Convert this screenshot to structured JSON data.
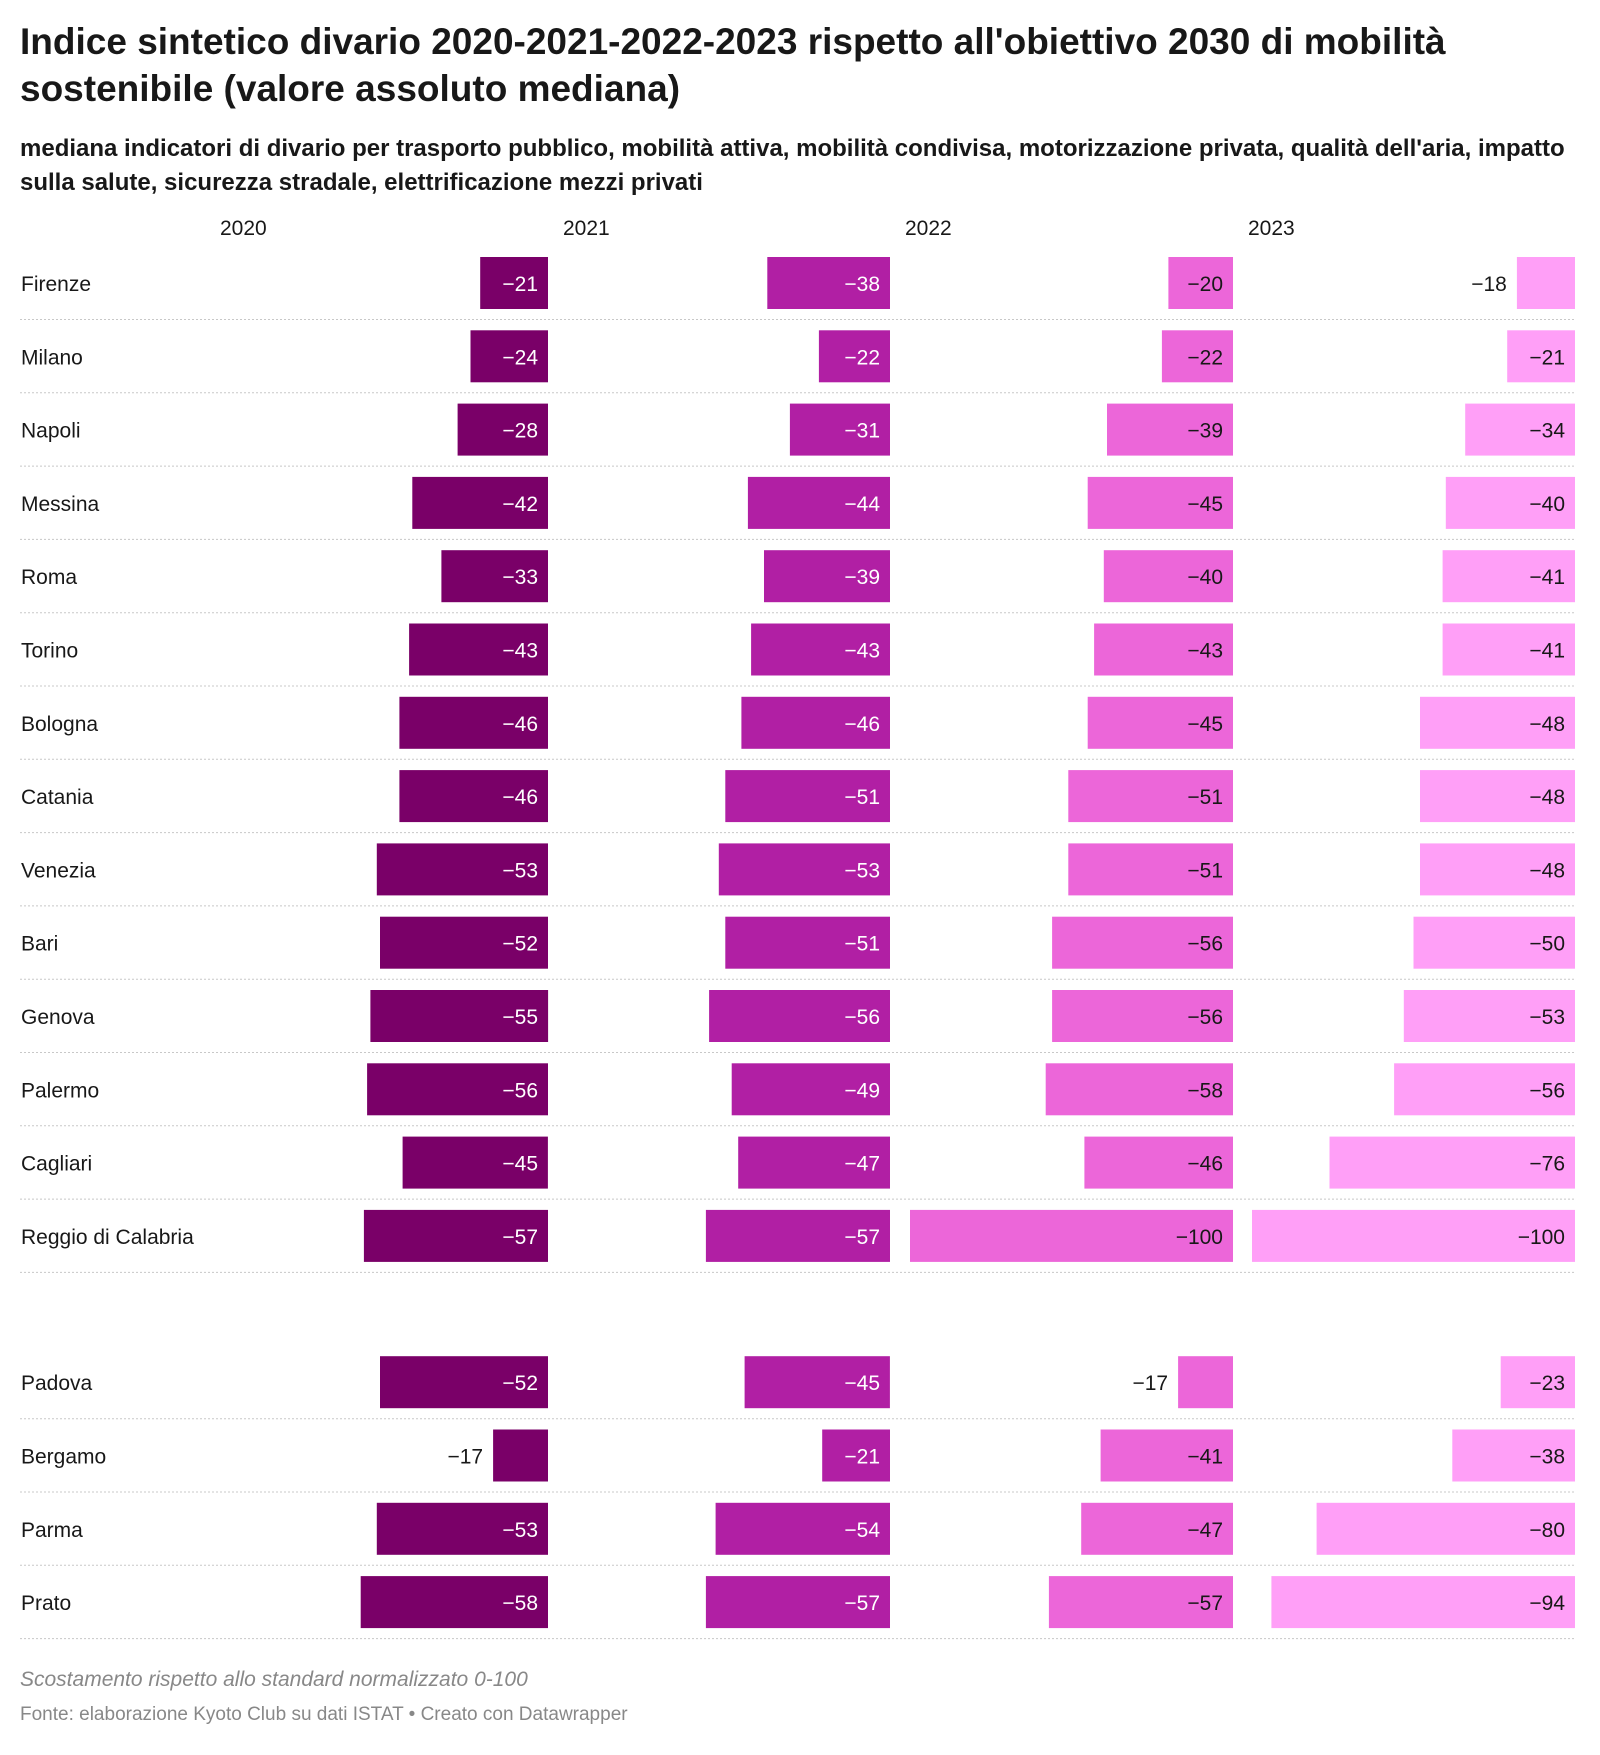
{
  "title": "Indice sintetico divario 2020-2021-2022-2023 rispetto all'obiettivo 2030 di mobilità sostenibile (valore assoluto mediana)",
  "subtitle": "mediana indicatori di divario per trasporto pubblico, mobilità attiva, mobilità condivisa, motorizzazione privata, qualità dell'aria, impatto sulla salute, sicurezza stradale, elettrificazione mezzi privati",
  "footer": {
    "note": "Scostamento rispetto allo standard normalizzato 0-100",
    "source": "Fonte: elaborazione Kyoto Club su dati ISTAT • Creato con Datawrapper"
  },
  "chart_data": {
    "type": "bar",
    "orientation": "horizontal",
    "value_range": [
      -100,
      0
    ],
    "number_format": "minus sign −",
    "colors": {
      "2020": "#7a0068",
      "2021": "#b11fa4",
      "2022": "#ec66d9",
      "2023": "#ff9ff7"
    },
    "series_names": [
      "2020",
      "2021",
      "2022",
      "2023"
    ],
    "groups": [
      {
        "rows": [
          {
            "label": "Firenze",
            "values": [
              -21,
              -38,
              -20,
              -18
            ]
          },
          {
            "label": "Milano",
            "values": [
              -24,
              -22,
              -22,
              -21
            ]
          },
          {
            "label": "Napoli",
            "values": [
              -28,
              -31,
              -39,
              -34
            ]
          },
          {
            "label": "Messina",
            "values": [
              -42,
              -44,
              -45,
              -40
            ]
          },
          {
            "label": "Roma",
            "values": [
              -33,
              -39,
              -40,
              -41
            ]
          },
          {
            "label": "Torino",
            "values": [
              -43,
              -43,
              -43,
              -41
            ]
          },
          {
            "label": "Bologna",
            "values": [
              -46,
              -46,
              -45,
              -48
            ]
          },
          {
            "label": "Catania",
            "values": [
              -46,
              -51,
              -51,
              -48
            ]
          },
          {
            "label": "Venezia",
            "values": [
              -53,
              -53,
              -51,
              -48
            ]
          },
          {
            "label": "Bari",
            "values": [
              -52,
              -51,
              -56,
              -50
            ]
          },
          {
            "label": "Genova",
            "values": [
              -55,
              -56,
              -56,
              -53
            ]
          },
          {
            "label": "Palermo",
            "values": [
              -56,
              -49,
              -58,
              -56
            ]
          },
          {
            "label": "Cagliari",
            "values": [
              -45,
              -47,
              -46,
              -76
            ]
          },
          {
            "label": "Reggio di Calabria",
            "values": [
              -57,
              -57,
              -100,
              -100
            ]
          }
        ]
      },
      {
        "rows": [
          {
            "label": "Padova",
            "values": [
              -52,
              -45,
              -17,
              -23
            ]
          },
          {
            "label": "Bergamo",
            "values": [
              -17,
              -21,
              -41,
              -38
            ]
          },
          {
            "label": "Parma",
            "values": [
              -53,
              -54,
              -47,
              -80
            ]
          },
          {
            "label": "Prato",
            "values": [
              -58,
              -57,
              -57,
              -94
            ]
          }
        ]
      }
    ]
  }
}
